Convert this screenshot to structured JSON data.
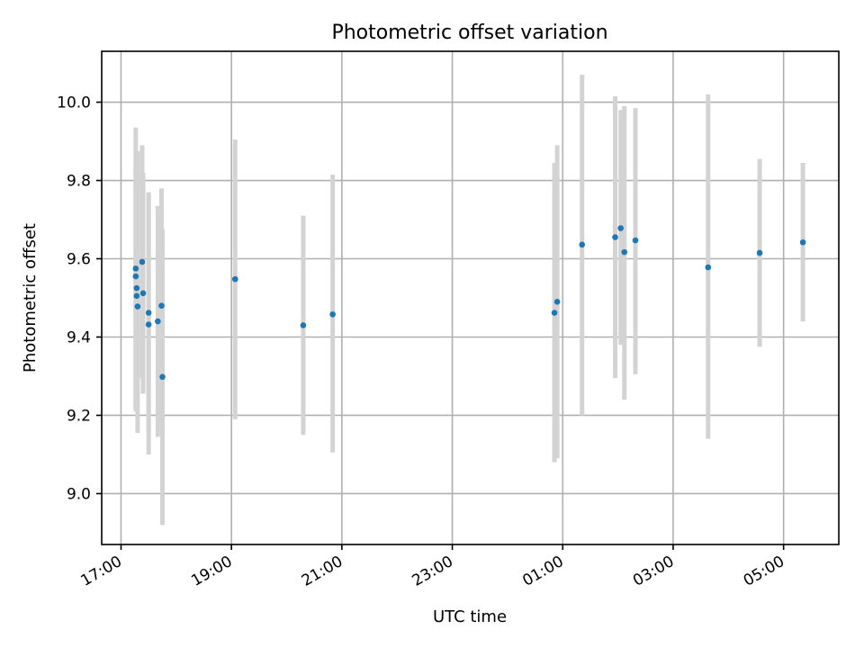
{
  "chart_data": {
    "type": "scatter",
    "title": "Photometric offset variation",
    "xlabel": "UTC time",
    "ylabel": "Photometric offset",
    "x_is_time": true,
    "x_tick_labels": [
      "17:00",
      "19:00",
      "21:00",
      "23:00",
      "01:00",
      "03:00",
      "05:00"
    ],
    "x_tick_times": [
      "2000-01-01T17:00",
      "2000-01-01T19:00",
      "2000-01-01T21:00",
      "2000-01-01T23:00",
      "2000-01-02T01:00",
      "2000-01-02T03:00",
      "2000-01-02T05:00"
    ],
    "xlim": [
      "2000-01-01T16:39",
      "2000-01-02T06:00"
    ],
    "ylim": [
      8.87,
      10.13
    ],
    "yticks": [
      9.0,
      9.2,
      9.4,
      9.6,
      9.8,
      10.0
    ],
    "grid": true,
    "marker_color": "#1f77b4",
    "errorbar_color": "#d3d3d3",
    "points": [
      {
        "t": "2000-01-01T17:16",
        "y": 9.575,
        "lo": 9.22,
        "hi": 9.935
      },
      {
        "t": "2000-01-01T17:16",
        "y": 9.555,
        "lo": 9.21,
        "hi": 9.84
      },
      {
        "t": "2000-01-01T17:17",
        "y": 9.525,
        "lo": 9.25,
        "hi": 9.85
      },
      {
        "t": "2000-01-01T17:17",
        "y": 9.505,
        "lo": 9.23,
        "hi": 9.86
      },
      {
        "t": "2000-01-01T17:18",
        "y": 9.478,
        "lo": 9.155,
        "hi": 9.875
      },
      {
        "t": "2000-01-01T17:23",
        "y": 9.592,
        "lo": 9.295,
        "hi": 9.89
      },
      {
        "t": "2000-01-01T17:24",
        "y": 9.512,
        "lo": 9.255,
        "hi": 9.82
      },
      {
        "t": "2000-01-01T17:30",
        "y": 9.462,
        "lo": 9.16,
        "hi": 9.765
      },
      {
        "t": "2000-01-01T17:30",
        "y": 9.432,
        "lo": 9.1,
        "hi": 9.77
      },
      {
        "t": "2000-01-01T17:40",
        "y": 9.44,
        "lo": 9.145,
        "hi": 9.735
      },
      {
        "t": "2000-01-01T17:44",
        "y": 9.48,
        "lo": 9.18,
        "hi": 9.78
      },
      {
        "t": "2000-01-01T17:45",
        "y": 9.298,
        "lo": 8.92,
        "hi": 9.675
      },
      {
        "t": "2000-01-01T19:04",
        "y": 9.548,
        "lo": 9.19,
        "hi": 9.905
      },
      {
        "t": "2000-01-01T20:18",
        "y": 9.43,
        "lo": 9.15,
        "hi": 9.71
      },
      {
        "t": "2000-01-01T20:50",
        "y": 9.458,
        "lo": 9.105,
        "hi": 9.815
      },
      {
        "t": "2000-01-02T00:51",
        "y": 9.462,
        "lo": 9.08,
        "hi": 9.845
      },
      {
        "t": "2000-01-02T00:54",
        "y": 9.49,
        "lo": 9.09,
        "hi": 9.89
      },
      {
        "t": "2000-01-02T01:21",
        "y": 9.636,
        "lo": 9.2,
        "hi": 10.07
      },
      {
        "t": "2000-01-02T01:57",
        "y": 9.655,
        "lo": 9.295,
        "hi": 10.015
      },
      {
        "t": "2000-01-02T02:03",
        "y": 9.678,
        "lo": 9.38,
        "hi": 9.98
      },
      {
        "t": "2000-01-02T02:07",
        "y": 9.617,
        "lo": 9.24,
        "hi": 9.99
      },
      {
        "t": "2000-01-02T02:19",
        "y": 9.647,
        "lo": 9.305,
        "hi": 9.985
      },
      {
        "t": "2000-01-02T03:38",
        "y": 9.578,
        "lo": 9.14,
        "hi": 10.02
      },
      {
        "t": "2000-01-02T04:34",
        "y": 9.615,
        "lo": 9.375,
        "hi": 9.855
      },
      {
        "t": "2000-01-02T05:21",
        "y": 9.642,
        "lo": 9.44,
        "hi": 9.845
      }
    ]
  }
}
